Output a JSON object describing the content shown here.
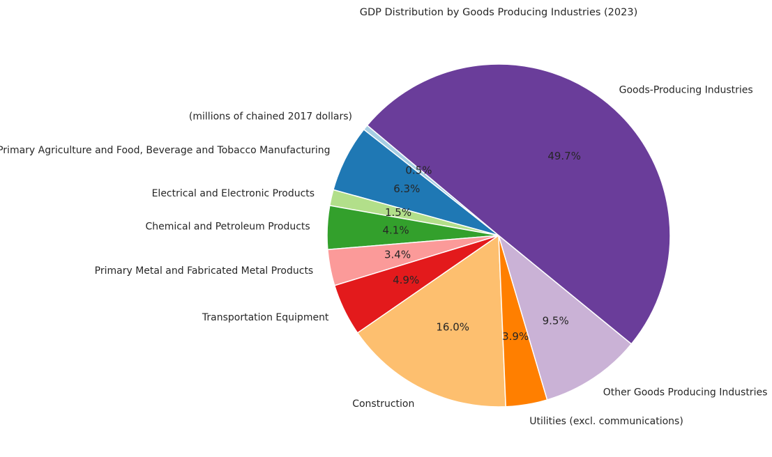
{
  "chart_data": {
    "type": "pie",
    "title": "GDP Distribution by Goods Producing Industries (2023)",
    "labels": [
      "(millions of chained 2017 dollars)",
      "Primary Agriculture and Food, Beverage and Tobacco Manufacturing",
      "Electrical and Electronic Products",
      "Chemical and Petroleum Products",
      "Primary Metal and Fabricated Metal Products",
      "Transportation Equipment",
      "Construction",
      "Utilities (excl. communications)",
      "Other Goods Producing Industries",
      "Goods-Producing Industries"
    ],
    "values": [
      0.5,
      6.3,
      1.5,
      4.1,
      3.4,
      4.9,
      16.0,
      3.9,
      9.5,
      49.7
    ],
    "percent_labels": [
      "0.5%",
      "6.3%",
      "1.5%",
      "4.1%",
      "3.4%",
      "4.9%",
      "16.0%",
      "3.9%",
      "9.5%",
      "49.7%"
    ],
    "colors": [
      "#a6cee3",
      "#1f78b4",
      "#b2df8a",
      "#33a02c",
      "#fb9a99",
      "#e31a1c",
      "#fdbf6f",
      "#ff7f00",
      "#cab2d6",
      "#6a3d9a"
    ],
    "start_angle_deg": 140,
    "direction": "counterclockwise"
  }
}
